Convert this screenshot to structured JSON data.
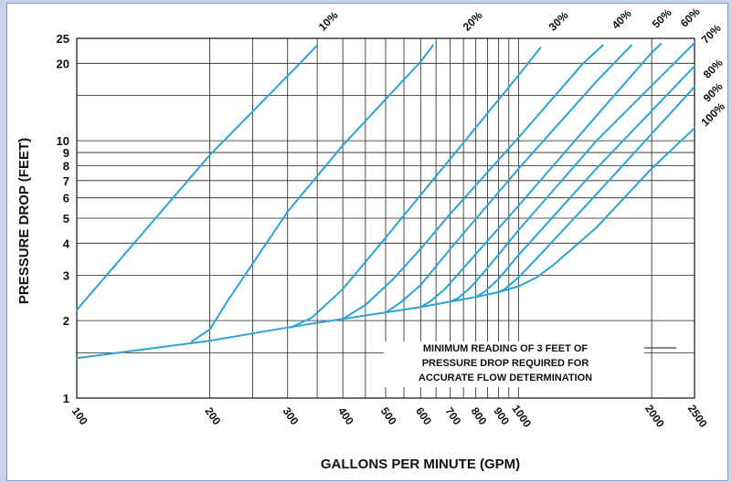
{
  "chart_data": {
    "type": "line",
    "xlabel": "GALLONS PER MINUTE (GPM)",
    "ylabel": "PRESSURE DROP (FEET)",
    "x_scale": "log",
    "y_scale": "log",
    "xlim": [
      100,
      2500
    ],
    "ylim": [
      1,
      25
    ],
    "grid": true,
    "x_ticks": [
      100,
      200,
      300,
      400,
      500,
      600,
      700,
      800,
      900,
      1000,
      2000,
      2500
    ],
    "x_tick_labels": [
      "100",
      "200",
      "300",
      "400",
      "500",
      "600",
      "700",
      "800",
      "900",
      "1000",
      "2000",
      "2500"
    ],
    "y_ticks": [
      1,
      2,
      3,
      4,
      5,
      6,
      7,
      8,
      9,
      10,
      20,
      25
    ],
    "y_tick_labels": [
      "1",
      "2",
      "3",
      "4",
      "5",
      "6",
      "7",
      "8",
      "9",
      "10",
      "20",
      "25"
    ],
    "x_gridlines": [
      100,
      200,
      250,
      300,
      350,
      400,
      450,
      500,
      550,
      600,
      650,
      700,
      750,
      800,
      850,
      900,
      950,
      1000,
      2000,
      2500
    ],
    "y_gridlines": [
      1,
      1.5,
      2,
      3,
      4,
      5,
      6,
      7,
      8,
      9,
      10,
      15,
      20,
      25
    ],
    "line_color": "#2aa3d6",
    "baseline": {
      "name": "",
      "points": [
        [
          100,
          1.43
        ],
        [
          200,
          1.67
        ],
        [
          300,
          1.88
        ],
        [
          400,
          2.03
        ],
        [
          500,
          2.15
        ],
        [
          600,
          2.26
        ],
        [
          700,
          2.37
        ],
        [
          800,
          2.47
        ],
        [
          900,
          2.58
        ],
        [
          1000,
          2.72
        ]
      ]
    },
    "series": [
      {
        "name": "10%",
        "points": [
          [
            100,
            2.2
          ],
          [
            200,
            8.8
          ],
          [
            320,
            20
          ],
          [
            350,
            23.5
          ]
        ]
      },
      {
        "name": "20%",
        "points": [
          [
            182,
            1.66
          ],
          [
            200,
            1.85
          ],
          [
            220,
            2.4
          ],
          [
            300,
            5.3
          ],
          [
            400,
            9.6
          ],
          [
            600,
            20.3
          ],
          [
            640,
            23.5
          ]
        ]
      },
      {
        "name": "30%",
        "points": [
          [
            305,
            1.88
          ],
          [
            340,
            2.05
          ],
          [
            400,
            2.65
          ],
          [
            500,
            4.2
          ],
          [
            700,
            8.5
          ],
          [
            1000,
            18
          ],
          [
            1120,
            23
          ]
        ]
      },
      {
        "name": "40%",
        "points": [
          [
            400,
            2.03
          ],
          [
            450,
            2.3
          ],
          [
            520,
            2.9
          ],
          [
            600,
            3.8
          ],
          [
            700,
            5.2
          ],
          [
            1000,
            10.3
          ],
          [
            1400,
            20
          ],
          [
            1550,
            23.5
          ]
        ]
      },
      {
        "name": "50%",
        "points": [
          [
            500,
            2.15
          ],
          [
            540,
            2.35
          ],
          [
            600,
            2.75
          ],
          [
            700,
            3.8
          ],
          [
            1000,
            7.8
          ],
          [
            1500,
            17
          ],
          [
            1800,
            23.5
          ]
        ]
      },
      {
        "name": "60%",
        "points": [
          [
            600,
            2.26
          ],
          [
            630,
            2.37
          ],
          [
            680,
            2.65
          ],
          [
            750,
            3.2
          ],
          [
            1000,
            5.6
          ],
          [
            1500,
            12.5
          ],
          [
            2000,
            22
          ],
          [
            2100,
            23.8
          ]
        ]
      },
      {
        "name": "70%",
        "points": [
          [
            700,
            2.37
          ],
          [
            730,
            2.45
          ],
          [
            780,
            2.7
          ],
          [
            850,
            3.2
          ],
          [
            1000,
            4.5
          ],
          [
            1500,
            10
          ],
          [
            2500,
            24
          ]
        ]
      },
      {
        "name": "80%",
        "points": [
          [
            800,
            2.47
          ],
          [
            840,
            2.6
          ],
          [
            900,
            2.9
          ],
          [
            1000,
            3.6
          ],
          [
            1500,
            7.8
          ],
          [
            2500,
            19.5
          ]
        ]
      },
      {
        "name": "90%",
        "points": [
          [
            900,
            2.58
          ],
          [
            930,
            2.65
          ],
          [
            1000,
            2.95
          ],
          [
            1100,
            3.5
          ],
          [
            1500,
            6.2
          ],
          [
            2500,
            16.2
          ]
        ]
      },
      {
        "name": "100%",
        "points": [
          [
            1000,
            2.72
          ],
          [
            1100,
            2.95
          ],
          [
            1200,
            3.3
          ],
          [
            1500,
            4.6
          ],
          [
            2000,
            7.8
          ],
          [
            2500,
            11.2
          ]
        ]
      }
    ],
    "annotation": [
      "MINIMUM READING OF 3 FEET OF",
      "PRESSURE DROP REQUIRED FOR",
      "ACCURATE FLOW DETERMINATION"
    ]
  }
}
